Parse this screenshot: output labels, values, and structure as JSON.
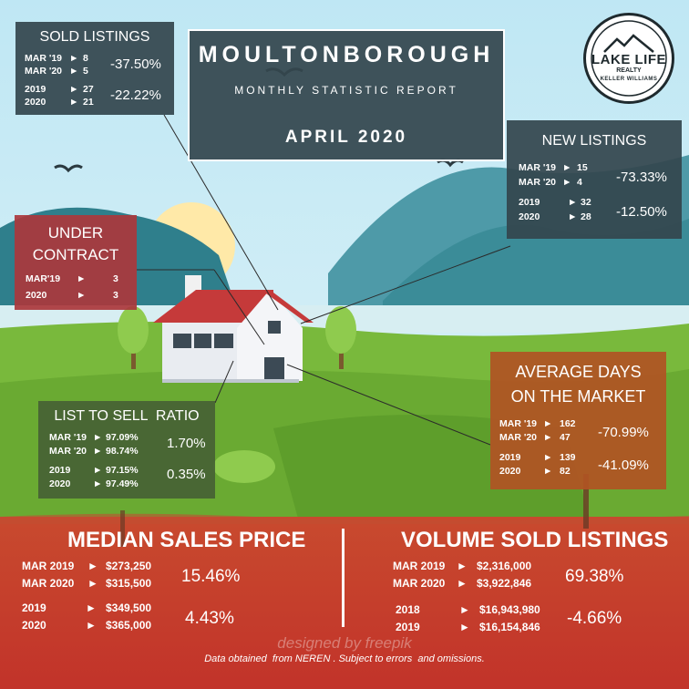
{
  "header": {
    "town": "MOULTONBOROUGH",
    "subtitle": "MONTHLY STATISTIC REPORT",
    "month": "APRIL 2020"
  },
  "logo": {
    "line1": "LAKE LIFE",
    "line2": "REALTY",
    "line3": "KELLER WILLIAMS"
  },
  "sold_listings": {
    "title": "SOLD LISTINGS",
    "rows": [
      {
        "label": "MAR '19",
        "value": "8"
      },
      {
        "label": "MAR '20",
        "value": "5"
      },
      {
        "label": "2019",
        "value": "27"
      },
      {
        "label": "2020",
        "value": "21"
      }
    ],
    "pct_month": "-37.50%",
    "pct_year": "-22.22%"
  },
  "new_listings": {
    "title": "NEW LISTINGS",
    "rows": [
      {
        "label": "MAR '19",
        "value": "15"
      },
      {
        "label": "MAR '20",
        "value": "4"
      },
      {
        "label": "2019",
        "value": "32"
      },
      {
        "label": "2020",
        "value": "28"
      }
    ],
    "pct_month": "-73.33%",
    "pct_year": "-12.50%"
  },
  "under_contract": {
    "title_line1": "UNDER",
    "title_line2": "CONTRACT",
    "rows": [
      {
        "label": "MAR'19",
        "value": "3"
      },
      {
        "label": "2020",
        "value": "3"
      }
    ]
  },
  "list_to_sell": {
    "title": "LIST TO SELL  RATIO",
    "rows": [
      {
        "label": "MAR '19",
        "value": "97.09%"
      },
      {
        "label": "MAR '20",
        "value": "98.74%"
      },
      {
        "label": "2019",
        "value": "97.15%"
      },
      {
        "label": "2020",
        "value": "97.49%"
      }
    ],
    "pct_month": "1.70%",
    "pct_year": "0.35%"
  },
  "avg_days": {
    "title_line1": "AVERAGE DAYS",
    "title_line2": "ON THE MARKET",
    "rows": [
      {
        "label": "MAR '19",
        "value": "162"
      },
      {
        "label": "MAR '20",
        "value": "47"
      },
      {
        "label": "2019",
        "value": "139"
      },
      {
        "label": "2020",
        "value": "82"
      }
    ],
    "pct_month": "-70.99%",
    "pct_year": "-41.09%"
  },
  "median_sales": {
    "title": "MEDIAN SALES PRICE",
    "rows": [
      {
        "label": "MAR 2019",
        "value": "$273,250"
      },
      {
        "label": "MAR 2020",
        "value": "$315,500"
      },
      {
        "label": "2019",
        "value": "$349,500"
      },
      {
        "label": "2020",
        "value": "$365,000"
      }
    ],
    "pct_month": "15.46%",
    "pct_year": "4.43%"
  },
  "volume_sold": {
    "title": "VOLUME SOLD LISTINGS",
    "rows": [
      {
        "label": "MAR 2019",
        "value": "$2,316,000"
      },
      {
        "label": "MAR 2020",
        "value": "$3,922,846"
      },
      {
        "label": "2018",
        "value": "$16,943,980"
      },
      {
        "label": "2019",
        "value": "$16,154,846"
      }
    ],
    "pct_month": "69.38%",
    "pct_year": "-4.66%"
  },
  "arrow_glyph": "►",
  "watermark": "designed by  freepik",
  "footer": "Data obtained  from NEREN . Subject to errors  and omissions.",
  "colors": {
    "sky": "#c9e9f3",
    "red_band": "#c9412c",
    "dark_panel": "#34464e",
    "green_panel": "#466234",
    "red_panel": "#ab373c",
    "orange_panel": "#b05424"
  }
}
